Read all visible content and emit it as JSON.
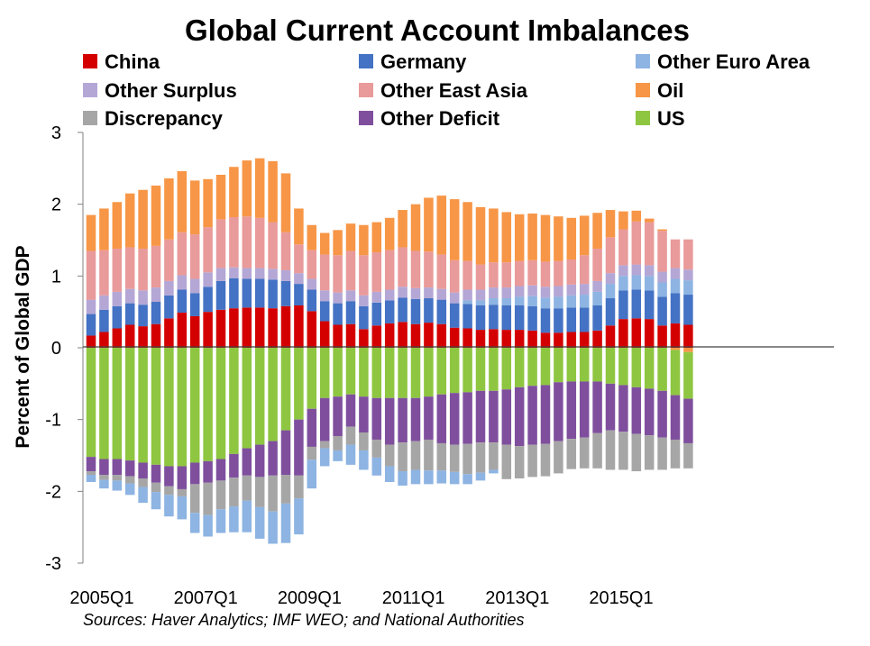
{
  "chart_data": {
    "type": "bar",
    "stacked": true,
    "title": "Global Current Account Imbalances",
    "ylabel": "Percent of Global GDP",
    "xlabel": "",
    "ylim": [
      -3,
      3
    ],
    "yticks": [
      3,
      2,
      1,
      0,
      -1,
      -2,
      -3
    ],
    "xtick_labels": [
      {
        "index": 0,
        "label": "2005Q1"
      },
      {
        "index": 8,
        "label": "2007Q1"
      },
      {
        "index": 16,
        "label": "2009Q1"
      },
      {
        "index": 24,
        "label": "2011Q1"
      },
      {
        "index": 32,
        "label": "2013Q1"
      },
      {
        "index": 40,
        "label": "2015Q1"
      }
    ],
    "x": [
      "2005Q1",
      "2005Q2",
      "2005Q3",
      "2005Q4",
      "2006Q1",
      "2006Q2",
      "2006Q3",
      "2006Q4",
      "2007Q1",
      "2007Q2",
      "2007Q3",
      "2007Q4",
      "2008Q1",
      "2008Q2",
      "2008Q3",
      "2008Q4",
      "2009Q1",
      "2009Q2",
      "2009Q3",
      "2009Q4",
      "2010Q1",
      "2010Q2",
      "2010Q3",
      "2010Q4",
      "2011Q1",
      "2011Q2",
      "2011Q3",
      "2011Q4",
      "2012Q1",
      "2012Q2",
      "2012Q3",
      "2012Q4",
      "2013Q1",
      "2013Q2",
      "2013Q3",
      "2013Q4",
      "2014Q1",
      "2014Q2",
      "2014Q3",
      "2014Q4",
      "2015Q1",
      "2015Q2",
      "2015Q3",
      "2015Q4",
      "2016Q1",
      "2016Q2",
      "2016Q3"
    ],
    "legend": {
      "placement": "top",
      "entries": [
        [
          "China",
          "Germany",
          "Other Euro Area"
        ],
        [
          "Other Surplus",
          "Other East Asia",
          "Oil"
        ],
        [
          "Discrepancy",
          "Other Deficit",
          "US"
        ]
      ]
    },
    "positive_stack_order": [
      "Oil",
      "Other East Asia",
      "Other Surplus",
      "Other Euro Area",
      "Germany",
      "China"
    ],
    "negative_stack_order": [
      "US",
      "Other Deficit",
      "Discrepancy",
      "Other Euro Area",
      "Oil"
    ],
    "series": [
      {
        "name": "China",
        "color": "#d40000",
        "values": [
          0.17,
          0.22,
          0.27,
          0.32,
          0.3,
          0.33,
          0.41,
          0.49,
          0.44,
          0.5,
          0.53,
          0.55,
          0.56,
          0.56,
          0.55,
          0.58,
          0.59,
          0.51,
          0.37,
          0.32,
          0.33,
          0.26,
          0.31,
          0.34,
          0.36,
          0.33,
          0.35,
          0.33,
          0.28,
          0.27,
          0.25,
          0.26,
          0.25,
          0.25,
          0.24,
          0.21,
          0.21,
          0.22,
          0.22,
          0.24,
          0.31,
          0.4,
          0.41,
          0.4,
          0.31,
          0.34,
          0.32
        ]
      },
      {
        "name": "Germany",
        "color": "#4472c4",
        "values": [
          0.3,
          0.31,
          0.31,
          0.3,
          0.3,
          0.31,
          0.32,
          0.32,
          0.32,
          0.35,
          0.4,
          0.42,
          0.4,
          0.4,
          0.4,
          0.35,
          0.3,
          0.3,
          0.28,
          0.3,
          0.32,
          0.32,
          0.32,
          0.32,
          0.34,
          0.35,
          0.34,
          0.34,
          0.34,
          0.34,
          0.34,
          0.34,
          0.34,
          0.34,
          0.34,
          0.34,
          0.34,
          0.34,
          0.34,
          0.35,
          0.38,
          0.4,
          0.4,
          0.4,
          0.4,
          0.42,
          0.42
        ]
      },
      {
        "name": "Other Euro Area",
        "color": "#8db4e2",
        "values": [
          0,
          0,
          0,
          0,
          0,
          0,
          0,
          0,
          0,
          0,
          0,
          0,
          0,
          0,
          0,
          0,
          0,
          0,
          0,
          0,
          0,
          0,
          0,
          0,
          0,
          0,
          0,
          0,
          0,
          0.05,
          0.07,
          0.09,
          0.1,
          0.12,
          0.14,
          0.15,
          0.16,
          0.17,
          0.18,
          0.19,
          0.2,
          0.2,
          0.2,
          0.2,
          0.2,
          0.2,
          0.2
        ]
      },
      {
        "name": "Other Surplus",
        "color": "#b4a7d6",
        "values": [
          0.2,
          0.2,
          0.2,
          0.2,
          0.2,
          0.2,
          0.2,
          0.2,
          0.2,
          0.2,
          0.18,
          0.15,
          0.15,
          0.15,
          0.15,
          0.15,
          0.15,
          0.15,
          0.15,
          0.15,
          0.15,
          0.15,
          0.15,
          0.15,
          0.15,
          0.15,
          0.15,
          0.15,
          0.15,
          0.15,
          0.15,
          0.15,
          0.15,
          0.15,
          0.15,
          0.15,
          0.15,
          0.15,
          0.15,
          0.15,
          0.15,
          0.15,
          0.15,
          0.15,
          0.15,
          0.15,
          0.15
        ]
      },
      {
        "name": "Other East Asia",
        "color": "#e99a9a",
        "values": [
          0.68,
          0.63,
          0.6,
          0.58,
          0.58,
          0.58,
          0.58,
          0.6,
          0.62,
          0.63,
          0.68,
          0.7,
          0.72,
          0.7,
          0.65,
          0.53,
          0.4,
          0.4,
          0.5,
          0.52,
          0.55,
          0.56,
          0.55,
          0.55,
          0.55,
          0.52,
          0.5,
          0.48,
          0.45,
          0.4,
          0.35,
          0.35,
          0.35,
          0.35,
          0.35,
          0.35,
          0.35,
          0.35,
          0.4,
          0.45,
          0.5,
          0.5,
          0.6,
          0.6,
          0.57,
          0.4,
          0.42
        ]
      },
      {
        "name": "Oil",
        "color": "#f79646",
        "values": [
          0.5,
          0.58,
          0.65,
          0.75,
          0.82,
          0.84,
          0.85,
          0.85,
          0.75,
          0.67,
          0.62,
          0.7,
          0.78,
          0.83,
          0.85,
          0.82,
          0.5,
          0.35,
          0.3,
          0.35,
          0.38,
          0.42,
          0.42,
          0.45,
          0.52,
          0.65,
          0.75,
          0.82,
          0.85,
          0.82,
          0.8,
          0.75,
          0.7,
          0.65,
          0.65,
          0.65,
          0.62,
          0.58,
          0.55,
          0.5,
          0.38,
          0.25,
          0.15,
          0.05,
          0.02,
          0,
          0
        ]
      },
      {
        "name": "Oil",
        "color": "#f79646",
        "sign": "negative",
        "values": [
          0,
          0,
          0,
          0,
          0,
          0,
          0,
          0,
          0,
          0,
          0,
          0,
          0,
          0,
          0,
          0,
          0,
          0,
          0,
          0,
          0,
          0,
          0,
          0,
          0,
          0,
          0,
          0,
          0,
          0,
          0,
          0,
          0,
          0,
          0,
          0,
          0,
          0,
          0,
          0,
          0,
          0,
          0,
          0,
          0,
          -0.03,
          -0.06
        ]
      },
      {
        "name": "US",
        "color": "#8ec641",
        "values": [
          -1.52,
          -1.55,
          -1.55,
          -1.57,
          -1.6,
          -1.63,
          -1.65,
          -1.65,
          -1.6,
          -1.58,
          -1.55,
          -1.48,
          -1.4,
          -1.35,
          -1.3,
          -1.15,
          -1.0,
          -0.85,
          -0.7,
          -0.68,
          -0.65,
          -0.68,
          -0.7,
          -0.7,
          -0.7,
          -0.7,
          -0.68,
          -0.65,
          -0.63,
          -0.62,
          -0.6,
          -0.6,
          -0.58,
          -0.55,
          -0.53,
          -0.52,
          -0.48,
          -0.47,
          -0.47,
          -0.47,
          -0.5,
          -0.52,
          -0.55,
          -0.57,
          -0.6,
          -0.63,
          -0.65
        ]
      },
      {
        "name": "Other Deficit",
        "color": "#7f4f9e",
        "values": [
          -0.2,
          -0.22,
          -0.22,
          -0.22,
          -0.22,
          -0.25,
          -0.28,
          -0.32,
          -0.3,
          -0.3,
          -0.3,
          -0.33,
          -0.38,
          -0.45,
          -0.48,
          -0.62,
          -0.78,
          -0.53,
          -0.6,
          -0.55,
          -0.45,
          -0.5,
          -0.58,
          -0.65,
          -0.62,
          -0.6,
          -0.6,
          -0.68,
          -0.72,
          -0.72,
          -0.72,
          -0.72,
          -0.77,
          -0.82,
          -0.82,
          -0.82,
          -0.82,
          -0.8,
          -0.78,
          -0.72,
          -0.65,
          -0.65,
          -0.65,
          -0.65,
          -0.65,
          -0.62,
          -0.62
        ]
      },
      {
        "name": "Discrepancy",
        "color": "#a6a6a6",
        "values": [
          -0.05,
          -0.07,
          -0.08,
          -0.1,
          -0.12,
          -0.13,
          -0.12,
          -0.1,
          -0.4,
          -0.45,
          -0.4,
          -0.4,
          -0.35,
          -0.42,
          -0.5,
          -0.4,
          -0.32,
          -0.18,
          -0.1,
          -0.2,
          -0.25,
          -0.25,
          -0.25,
          -0.3,
          -0.4,
          -0.4,
          -0.43,
          -0.38,
          -0.38,
          -0.42,
          -0.42,
          -0.38,
          -0.48,
          -0.45,
          -0.45,
          -0.45,
          -0.45,
          -0.42,
          -0.43,
          -0.49,
          -0.55,
          -0.53,
          -0.52,
          -0.48,
          -0.45,
          -0.4,
          -0.35
        ]
      },
      {
        "name": "Other Euro Area",
        "color": "#8db4e2",
        "values": [
          -0.1,
          -0.12,
          -0.14,
          -0.16,
          -0.22,
          -0.24,
          -0.3,
          -0.32,
          -0.28,
          -0.3,
          -0.33,
          -0.36,
          -0.44,
          -0.44,
          -0.45,
          -0.55,
          -0.5,
          -0.4,
          -0.25,
          -0.15,
          -0.28,
          -0.27,
          -0.25,
          -0.22,
          -0.2,
          -0.2,
          -0.19,
          -0.18,
          -0.17,
          -0.14,
          -0.11,
          -0.05,
          0,
          0,
          0,
          0,
          0,
          0,
          0,
          0,
          0,
          0,
          0,
          0,
          0,
          0,
          0
        ]
      }
    ],
    "grid": false,
    "source": "Sources: Haver Analytics; IMF WEO; and National Authorities"
  }
}
